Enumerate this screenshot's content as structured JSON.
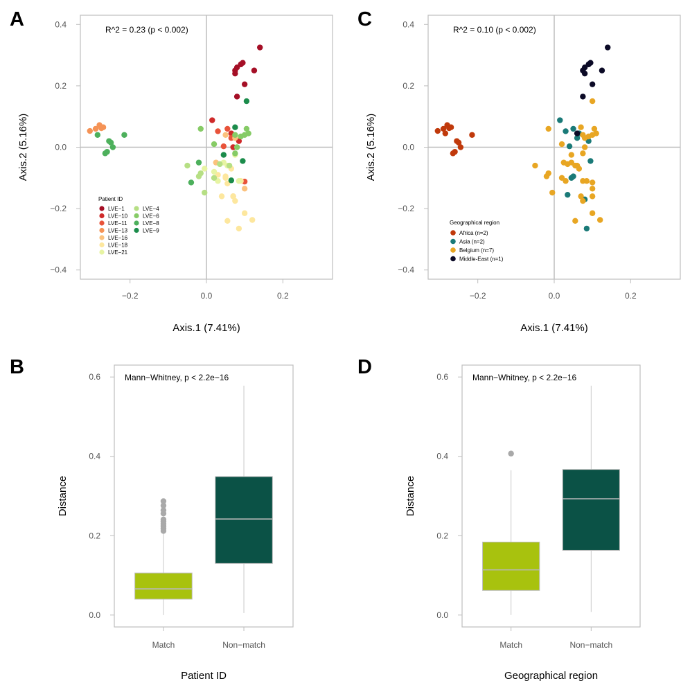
{
  "chart_data": [
    {
      "panel": "A",
      "type": "scatter",
      "xlabel": "Axis.1 (7.41%)",
      "ylabel": "Axis.2 (5.16%)",
      "xlim": [
        -0.33,
        0.33
      ],
      "ylim": [
        -0.43,
        0.43
      ],
      "xticks": [
        -0.2,
        0.0,
        0.2
      ],
      "xtick_labels": [
        "−0.2",
        "0.0",
        "0.2"
      ],
      "yticks": [
        -0.4,
        -0.2,
        0.0,
        0.2,
        0.4
      ],
      "ytick_labels": [
        "−0.4",
        "−0.2",
        "0.0",
        "0.2",
        "0.4"
      ],
      "annotation": "R^2 = 0.23 (p < 0.002)",
      "legend_title": "Patient ID",
      "legend_position": "bottom-left",
      "series": [
        {
          "name": "LVE−1",
          "color": "#a50f26",
          "points": [
            [
              0.08,
              0.26
            ],
            [
              0.09,
              0.27
            ],
            [
              0.095,
              0.275
            ],
            [
              0.075,
              0.25
            ],
            [
              0.125,
              0.25
            ],
            [
              0.14,
              0.325
            ],
            [
              0.075,
              0.24
            ],
            [
              0.1,
              0.205
            ],
            [
              0.08,
              0.165
            ]
          ]
        },
        {
          "name": "LVE−10",
          "color": "#cf2a2a",
          "points": [
            [
              0.015,
              0.088
            ],
            [
              0.065,
              0.045
            ],
            [
              0.085,
              0.02
            ],
            [
              0.07,
              0.0
            ]
          ]
        },
        {
          "name": "LVE−11",
          "color": "#e8533a",
          "points": [
            [
              0.055,
              0.06
            ],
            [
              0.03,
              0.052
            ],
            [
              0.045,
              0.003
            ],
            [
              0.065,
              0.03
            ],
            [
              0.1,
              -0.112
            ]
          ]
        },
        {
          "name": "LVE−13",
          "color": "#f59356",
          "points": [
            [
              -0.305,
              0.053
            ],
            [
              -0.29,
              0.06
            ],
            [
              -0.28,
              0.072
            ],
            [
              -0.275,
              0.062
            ],
            [
              -0.27,
              0.065
            ]
          ]
        },
        {
          "name": "LVE−16",
          "color": "#fbc27e",
          "points": [
            [
              0.05,
              0.04
            ],
            [
              0.075,
              0.03
            ],
            [
              0.1,
              -0.135
            ],
            [
              0.07,
              -0.16
            ],
            [
              0.025,
              -0.05
            ]
          ]
        },
        {
          "name": "LVE−18",
          "color": "#fde79e",
          "points": [
            [
              0.03,
              -0.09
            ],
            [
              0.05,
              -0.1
            ],
            [
              0.055,
              -0.118
            ],
            [
              0.075,
              -0.175
            ],
            [
              0.07,
              -0.16
            ],
            [
              0.09,
              -0.11
            ],
            [
              0.1,
              -0.215
            ],
            [
              0.085,
              -0.265
            ],
            [
              0.12,
              -0.237
            ],
            [
              0.055,
              -0.24
            ],
            [
              0.04,
              -0.16
            ],
            [
              0.065,
              -0.07
            ],
            [
              0.05,
              -0.095
            ]
          ]
        },
        {
          "name": "LVE−21",
          "color": "#e7f4a3",
          "points": [
            [
              0.03,
              -0.11
            ],
            [
              0.045,
              -0.05
            ],
            [
              0.055,
              -0.06
            ],
            [
              0.075,
              -0.025
            ],
            [
              0.085,
              -0.11
            ],
            [
              -0.005,
              -0.07
            ],
            [
              0.02,
              -0.08
            ]
          ]
        },
        {
          "name": "LVE−4",
          "color": "#b6df84",
          "points": [
            [
              -0.05,
              -0.06
            ],
            [
              -0.02,
              -0.095
            ],
            [
              -0.015,
              -0.085
            ],
            [
              -0.005,
              -0.148
            ],
            [
              0.02,
              -0.1
            ],
            [
              0.035,
              -0.055
            ],
            [
              0.06,
              -0.06
            ]
          ]
        },
        {
          "name": "LVE−6",
          "color": "#86cb66",
          "points": [
            [
              -0.015,
              0.06
            ],
            [
              0.02,
              0.01
            ],
            [
              0.075,
              0.04
            ],
            [
              0.08,
              0.0
            ],
            [
              0.09,
              0.035
            ],
            [
              0.105,
              0.06
            ],
            [
              0.11,
              0.045
            ],
            [
              0.075,
              -0.02
            ],
            [
              0.1,
              0.04
            ]
          ]
        },
        {
          "name": "LVE−8",
          "color": "#4db05c",
          "points": [
            [
              -0.285,
              0.04
            ],
            [
              -0.255,
              0.02
            ],
            [
              -0.25,
              0.015
            ],
            [
              -0.26,
              -0.015
            ],
            [
              -0.265,
              -0.02
            ],
            [
              -0.245,
              0.0
            ],
            [
              -0.215,
              0.04
            ],
            [
              -0.02,
              -0.05
            ],
            [
              -0.04,
              -0.115
            ]
          ]
        },
        {
          "name": "LVE−9",
          "color": "#1b8c4b",
          "points": [
            [
              0.105,
              0.15
            ],
            [
              0.075,
              0.065
            ],
            [
              0.045,
              -0.025
            ],
            [
              0.095,
              -0.045
            ],
            [
              0.065,
              -0.108
            ]
          ]
        }
      ]
    },
    {
      "panel": "C",
      "type": "scatter",
      "xlabel": "Axis.1 (7.41%)",
      "ylabel": "Axis.2 (5.16%)",
      "xlim": [
        -0.33,
        0.33
      ],
      "ylim": [
        -0.43,
        0.43
      ],
      "xticks": [
        -0.2,
        0.0,
        0.2
      ],
      "xtick_labels": [
        "−0.2",
        "0.0",
        "0.2"
      ],
      "yticks": [
        -0.4,
        -0.2,
        0.0,
        0.2,
        0.4
      ],
      "ytick_labels": [
        "−0.4",
        "−0.2",
        "0.0",
        "0.2",
        "0.4"
      ],
      "annotation": "R^2 = 0.10 (p < 0.002)",
      "legend_title": "Geographical region",
      "legend_position": "bottom-left",
      "series": [
        {
          "name": "Africa (n=2)",
          "color": "#c0390b",
          "points": [
            [
              -0.305,
              0.053
            ],
            [
              -0.29,
              0.06
            ],
            [
              -0.28,
              0.072
            ],
            [
              -0.275,
              0.062
            ],
            [
              -0.27,
              0.065
            ],
            [
              -0.285,
              0.045
            ],
            [
              -0.255,
              0.02
            ],
            [
              -0.25,
              0.015
            ],
            [
              -0.26,
              -0.015
            ],
            [
              -0.265,
              -0.02
            ],
            [
              -0.245,
              0.0
            ],
            [
              -0.215,
              0.04
            ]
          ]
        },
        {
          "name": "Asia (n=2)",
          "color": "#1a7a78",
          "points": [
            [
              0.015,
              0.088
            ],
            [
              0.05,
              0.06
            ],
            [
              0.065,
              0.045
            ],
            [
              0.03,
              0.052
            ],
            [
              0.06,
              0.03
            ],
            [
              0.04,
              0.003
            ],
            [
              0.09,
              0.02
            ],
            [
              0.095,
              -0.045
            ],
            [
              0.05,
              -0.095
            ],
            [
              0.045,
              -0.1
            ],
            [
              0.08,
              -0.17
            ],
            [
              0.035,
              -0.155
            ],
            [
              0.085,
              -0.265
            ],
            [
              0.065,
              0.045
            ]
          ]
        },
        {
          "name": "Belgium (n=7)",
          "color": "#e8a623",
          "points": [
            [
              -0.015,
              0.06
            ],
            [
              0.02,
              0.01
            ],
            [
              0.075,
              0.04
            ],
            [
              0.08,
              0.0
            ],
            [
              0.09,
              0.035
            ],
            [
              0.105,
              0.06
            ],
            [
              0.11,
              0.045
            ],
            [
              0.075,
              -0.02
            ],
            [
              0.1,
              0.04
            ],
            [
              0.1,
              0.15
            ],
            [
              0.07,
              0.065
            ],
            [
              0.08,
              0.03
            ],
            [
              -0.05,
              -0.06
            ],
            [
              -0.02,
              -0.095
            ],
            [
              -0.015,
              -0.085
            ],
            [
              -0.005,
              -0.148
            ],
            [
              0.02,
              -0.1
            ],
            [
              0.035,
              -0.055
            ],
            [
              0.06,
              -0.06
            ],
            [
              0.03,
              -0.11
            ],
            [
              0.045,
              -0.05
            ],
            [
              0.055,
              -0.06
            ],
            [
              0.075,
              -0.11
            ],
            [
              0.085,
              -0.11
            ],
            [
              0.1,
              -0.115
            ],
            [
              0.1,
              -0.135
            ],
            [
              0.07,
              -0.16
            ],
            [
              0.075,
              -0.175
            ],
            [
              0.1,
              -0.215
            ],
            [
              0.12,
              -0.237
            ],
            [
              0.055,
              -0.24
            ],
            [
              0.025,
              -0.05
            ],
            [
              0.1,
              -0.16
            ],
            [
              0.045,
              -0.025
            ],
            [
              0.065,
              -0.07
            ]
          ]
        },
        {
          "name": "Middle-East (n=1)",
          "color": "#0b0a26",
          "points": [
            [
              0.08,
              0.26
            ],
            [
              0.09,
              0.27
            ],
            [
              0.095,
              0.275
            ],
            [
              0.075,
              0.25
            ],
            [
              0.125,
              0.25
            ],
            [
              0.14,
              0.325
            ],
            [
              0.08,
              0.24
            ],
            [
              0.1,
              0.205
            ],
            [
              0.075,
              0.165
            ],
            [
              0.06,
              0.045
            ]
          ]
        }
      ]
    },
    {
      "panel": "B",
      "type": "box",
      "categories": [
        "Match",
        "Non−match"
      ],
      "xlabel": "Patient ID",
      "ylabel": "Distance",
      "ylim": [
        -0.03,
        0.63
      ],
      "yticks": [
        0.0,
        0.2,
        0.4,
        0.6
      ],
      "ytick_labels": [
        "0.0",
        "0.2",
        "0.4",
        "0.6"
      ],
      "annotation": "Mann−Whitney, p < 2.2e−16",
      "boxes": [
        {
          "name": "Match",
          "color": "#a8c20e",
          "whisker_low": 0.0,
          "q1": 0.04,
          "median": 0.066,
          "q3": 0.106,
          "whisker_high": 0.205,
          "outliers": [
            0.212,
            0.218,
            0.224,
            0.23,
            0.236,
            0.241,
            0.256,
            0.264,
            0.276,
            0.287
          ]
        },
        {
          "name": "Non−match",
          "color": "#0b5246",
          "whisker_low": 0.005,
          "q1": 0.13,
          "median": 0.242,
          "q3": 0.349,
          "whisker_high": 0.578,
          "outliers": []
        }
      ]
    },
    {
      "panel": "D",
      "type": "box",
      "categories": [
        "Match",
        "Non−match"
      ],
      "xlabel": "Geographical region",
      "ylabel": "Distance",
      "ylim": [
        -0.03,
        0.63
      ],
      "yticks": [
        0.0,
        0.2,
        0.4,
        0.6
      ],
      "ytick_labels": [
        "0.0",
        "0.2",
        "0.4",
        "0.6"
      ],
      "annotation": "Mann−Whitney, p < 2.2e−16",
      "boxes": [
        {
          "name": "Match",
          "color": "#a8c20e",
          "whisker_low": 0.0,
          "q1": 0.062,
          "median": 0.114,
          "q3": 0.184,
          "whisker_high": 0.365,
          "outliers": [
            0.407
          ]
        },
        {
          "name": "Non−match",
          "color": "#0b5246",
          "whisker_low": 0.008,
          "q1": 0.163,
          "median": 0.293,
          "q3": 0.367,
          "whisker_high": 0.578,
          "outliers": []
        }
      ]
    }
  ]
}
